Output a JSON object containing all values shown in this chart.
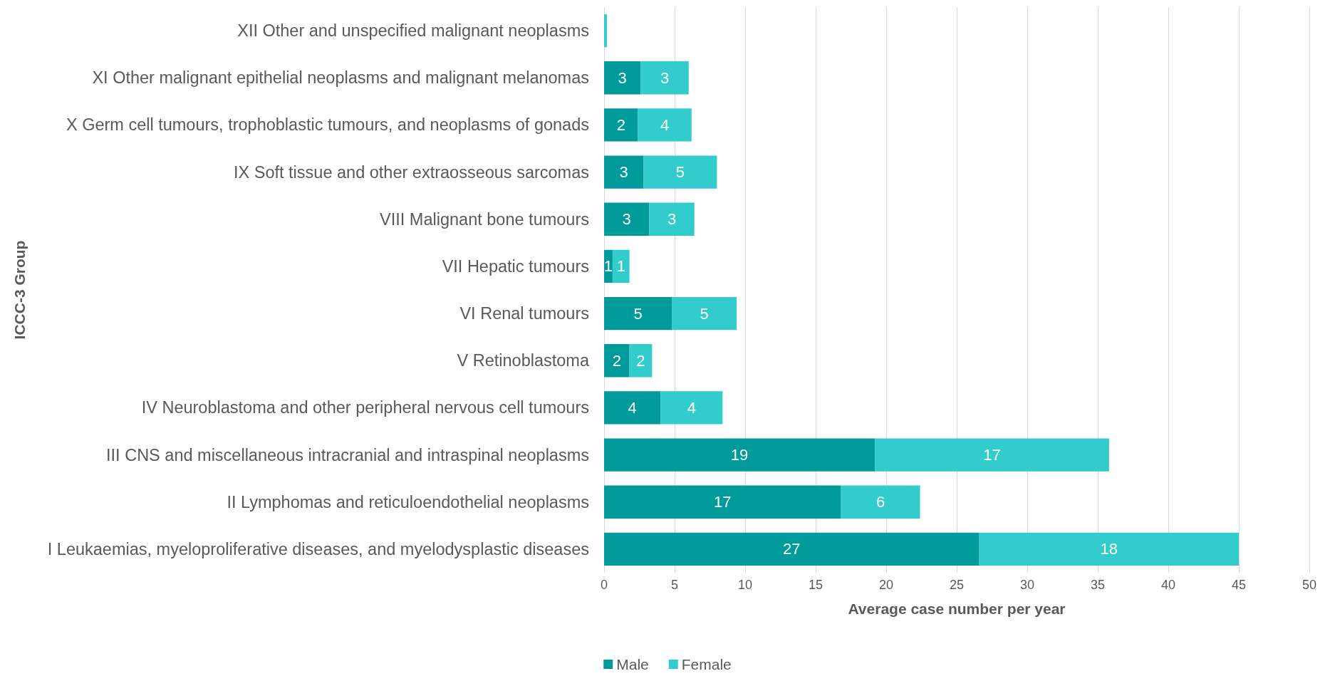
{
  "chart_data": {
    "type": "bar",
    "orientation": "horizontal",
    "stacked": true,
    "xlabel": "Average case number per year",
    "ylabel": "ICCC-3 Group",
    "categories": [
      "XII Other and unspecified malignant neoplasms",
      "XI Other malignant epithelial neoplasms and malignant melanomas",
      "X Germ cell tumours, trophoblastic tumours, and neoplasms of gonads",
      "IX Soft tissue and other extraosseous sarcomas",
      "VIII Malignant bone tumours",
      "VII Hepatic tumours",
      "VI Renal tumours",
      "V Retinoblastoma",
      "IV Neuroblastoma and other peripheral nervous cell tumours",
      "III CNS and miscellaneous intracranial and intraspinal neoplasms",
      "II Lymphomas and reticuloendothelial neoplasms",
      "I Leukaemias, myeloproliferative diseases, and myelodysplastic diseases"
    ],
    "series": [
      {
        "name": "Male",
        "color": "#009a9a",
        "values": [
          0,
          2.6,
          2.4,
          2.8,
          3.2,
          0.6,
          4.8,
          1.8,
          4.0,
          19.2,
          16.8,
          26.6
        ],
        "value_labels": [
          null,
          "3",
          "2",
          "3",
          "3",
          "1",
          "5",
          "2",
          "4",
          "19",
          "17",
          "27"
        ]
      },
      {
        "name": "Female",
        "color": "#33cccc",
        "values": [
          0.2,
          3.4,
          3.8,
          5.2,
          3.2,
          1.2,
          4.6,
          1.6,
          4.4,
          16.6,
          5.6,
          18.4
        ],
        "value_labels": [
          null,
          "3",
          "4",
          "5",
          "3",
          "1",
          "5",
          "2",
          "4",
          "17",
          "6",
          "18"
        ]
      }
    ],
    "xlim": [
      0,
      50
    ],
    "xticks": [
      0,
      5,
      10,
      15,
      20,
      25,
      30,
      35,
      40,
      45,
      50
    ],
    "grid": "x",
    "legend": "bottom"
  }
}
